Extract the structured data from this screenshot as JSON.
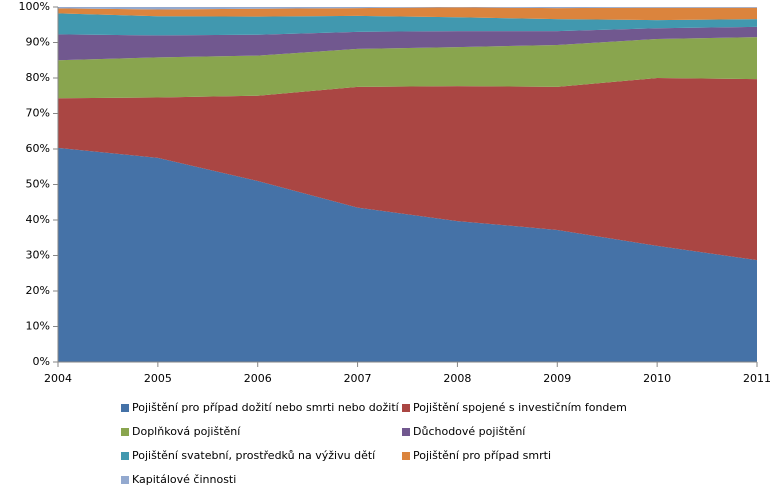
{
  "chart_data": {
    "type": "area",
    "stacked": true,
    "x": [
      2004,
      2005,
      2006,
      2007,
      2008,
      2009,
      2010,
      2011
    ],
    "xlim": [
      2004,
      2011
    ],
    "xticks": [
      2004,
      2005,
      2006,
      2007,
      2008,
      2009,
      2010,
      2011
    ],
    "ylim": [
      0,
      100
    ],
    "yticks": [
      {
        "value": 0,
        "label": "0%"
      },
      {
        "value": 10,
        "label": "10%"
      },
      {
        "value": 20,
        "label": "20%"
      },
      {
        "value": 30,
        "label": "30%"
      },
      {
        "value": 40,
        "label": "40%"
      },
      {
        "value": 50,
        "label": "50%"
      },
      {
        "value": 60,
        "label": "60%"
      },
      {
        "value": 70,
        "label": "70%"
      },
      {
        "value": 80,
        "label": "80%"
      },
      {
        "value": 90,
        "label": "90%"
      },
      {
        "value": 100,
        "label": "100%"
      }
    ],
    "grid": false,
    "legend": "bottom",
    "series": [
      {
        "name": "Pojištění pro případ dožití nebo smrti nebo dožití",
        "color": "#4572A7",
        "values": [
          60.3,
          57.5,
          51,
          43.5,
          39.7,
          37.2,
          32.7,
          28.7
        ]
      },
      {
        "name": "Pojištění spojené s investičním fondem",
        "color": "#AA4643",
        "values": [
          14,
          17,
          24,
          34,
          38,
          40.3,
          47.3,
          51
        ]
      },
      {
        "name": "Doplňková pojištění",
        "color": "#89A54E",
        "values": [
          10.7,
          11.3,
          11.3,
          10.7,
          11,
          11.8,
          11,
          11.8
        ]
      },
      {
        "name": "Důchodové pojištění",
        "color": "#71588F",
        "values": [
          7.3,
          6.2,
          5.9,
          4.8,
          4.5,
          3.9,
          3,
          2.9
        ]
      },
      {
        "name": "Pojištění svatební, prostředků na výživu dětí",
        "color": "#4198AF",
        "values": [
          5.9,
          5.4,
          5.1,
          4.5,
          3.9,
          3.4,
          2.3,
          2.2
        ]
      },
      {
        "name": "Pojištění pro případ smrti",
        "color": "#DB843D",
        "values": [
          1.4,
          1.9,
          2.2,
          2.2,
          2.8,
          3.1,
          3.5,
          3.2
        ]
      },
      {
        "name": "Kapitálové činnosti",
        "color": "#93A9CF",
        "values": [
          0.4,
          0.7,
          0.5,
          0.3,
          0.1,
          0.3,
          0.2,
          0.2
        ]
      }
    ]
  }
}
